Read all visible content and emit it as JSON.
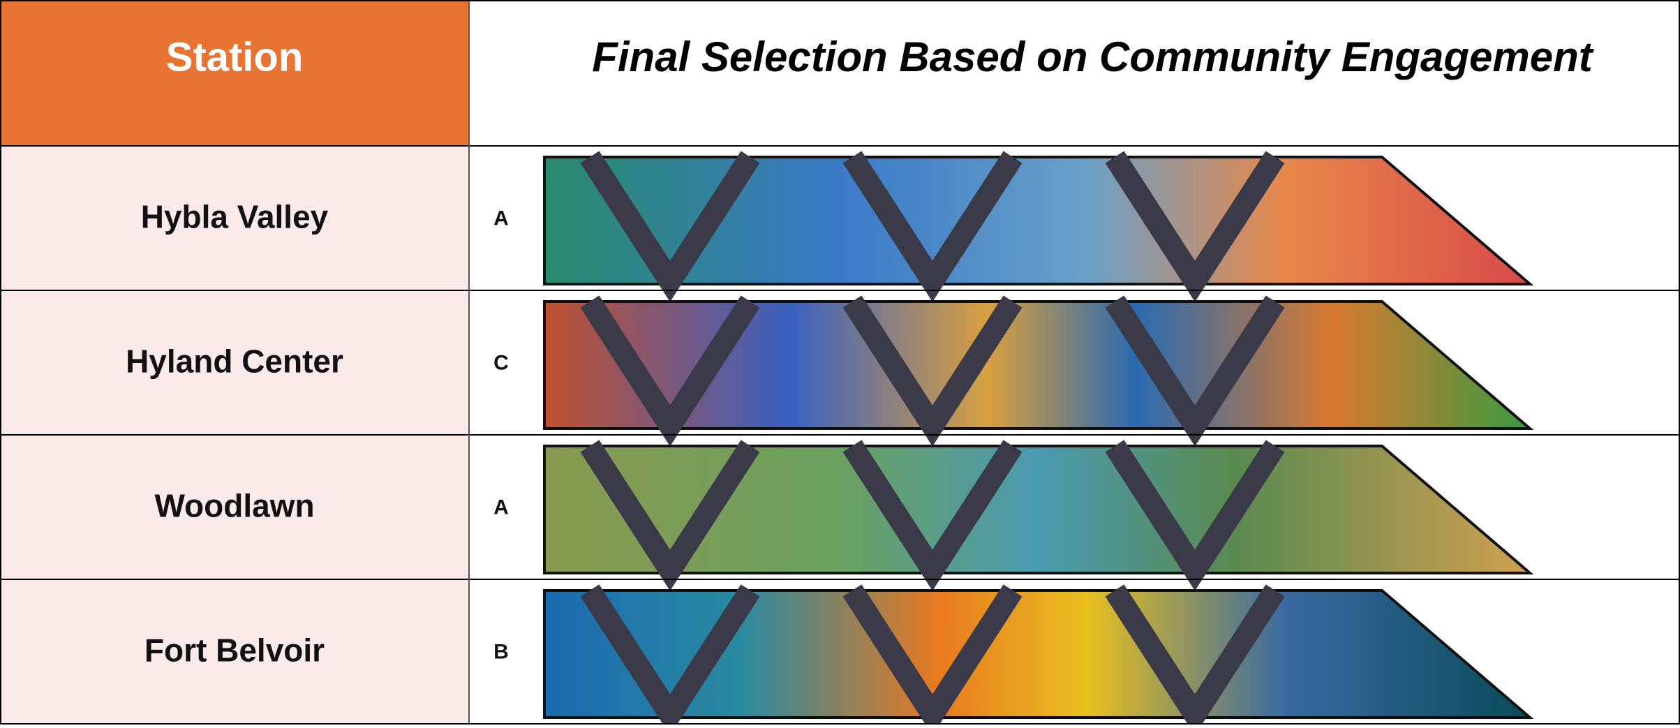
{
  "header": {
    "station": "Station",
    "selection": "Final Selection Based on Community Engagement"
  },
  "rows": [
    {
      "station": "Hybla Valley",
      "option": "A"
    },
    {
      "station": "Hyland Center",
      "option": "C"
    },
    {
      "station": "Woodlawn",
      "option": "A"
    },
    {
      "station": "Fort Belvoir",
      "option": "B"
    }
  ]
}
